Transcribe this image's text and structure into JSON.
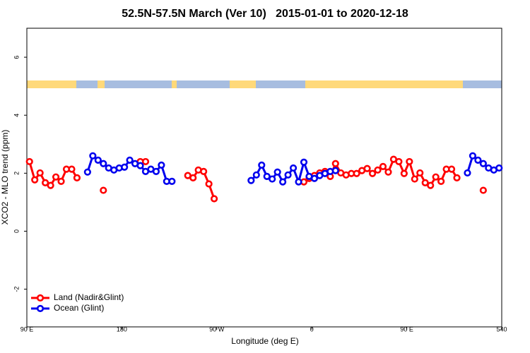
{
  "chart_data": {
    "type": "line",
    "title": "52.5N-57.5N March (Ver 10)   2015-01-01 to 2020-12-18",
    "xlabel": "Longitude (deg E)",
    "ylabel": "XCO2 - MLO trend (ppm)",
    "x": [
      92.5,
      97.5,
      102.5,
      107.5,
      112.5,
      117.5,
      122.5,
      127.5,
      132.5,
      137.5,
      142.5,
      147.5,
      152.5,
      157.5,
      162.5,
      167.5,
      172.5,
      177.5,
      182.5,
      187.5,
      192.5,
      197.5,
      202.5,
      207.5,
      212.5,
      217.5,
      222.5,
      227.5,
      232.5,
      237.5,
      242.5,
      247.5,
      252.5,
      257.5,
      262.5,
      267.5,
      272.5,
      277.5,
      282.5,
      287.5,
      292.5,
      297.5,
      302.5,
      307.5,
      312.5,
      317.5,
      322.5,
      327.5,
      332.5,
      337.5,
      342.5,
      347.5,
      352.5,
      357.5,
      362.5,
      367.5,
      372.5,
      377.5,
      382.5,
      387.5,
      392.5,
      397.5,
      402.5,
      407.5,
      412.5,
      417.5,
      422.5,
      427.5,
      432.5,
      437.5,
      442.5,
      447.5,
      452.5,
      457.5,
      462.5,
      467.5,
      472.5,
      477.5,
      482.5,
      487.5,
      492.5,
      497.5,
      502.5,
      507.5,
      512.5,
      517.5,
      522.5,
      527.5,
      532.5,
      537.5
    ],
    "series": [
      {
        "name": "Land (Nadir&Glint)",
        "color": "#ff0000",
        "values": [
          2.4,
          1.77,
          2.01,
          1.67,
          1.58,
          1.87,
          1.72,
          2.14,
          2.14,
          1.84,
          null,
          null,
          null,
          null,
          1.41,
          null,
          null,
          null,
          null,
          null,
          null,
          2.4,
          2.4,
          null,
          null,
          null,
          null,
          null,
          null,
          null,
          1.92,
          1.84,
          2.11,
          2.06,
          1.63,
          1.12,
          null,
          null,
          null,
          null,
          null,
          null,
          null,
          null,
          null,
          null,
          null,
          null,
          null,
          null,
          null,
          null,
          1.7,
          1.82,
          1.92,
          2.01,
          2.06,
          1.89,
          2.33,
          2.01,
          1.94,
          1.99,
          1.99,
          2.09,
          2.16,
          1.99,
          2.11,
          2.23,
          2.04,
          2.48,
          2.4,
          1.99,
          2.4,
          1.8,
          2.01,
          1.67,
          1.58,
          1.87,
          1.72,
          2.14,
          2.14,
          1.84,
          null,
          null,
          null,
          null,
          1.41,
          null,
          null,
          null
        ]
      },
      {
        "name": "Ocean (Glint)",
        "color": "#0000ee",
        "values": [
          null,
          null,
          null,
          null,
          null,
          null,
          null,
          null,
          null,
          null,
          null,
          2.04,
          2.6,
          2.45,
          2.33,
          2.18,
          2.11,
          2.18,
          2.21,
          2.45,
          2.33,
          2.26,
          2.06,
          2.14,
          2.06,
          2.28,
          1.72,
          1.72,
          null,
          null,
          null,
          null,
          null,
          null,
          null,
          null,
          null,
          null,
          null,
          null,
          null,
          null,
          1.75,
          1.94,
          2.28,
          1.89,
          1.8,
          2.04,
          1.7,
          1.94,
          2.18,
          1.7,
          2.38,
          1.89,
          1.82,
          1.92,
          1.99,
          2.06,
          2.09,
          null,
          null,
          null,
          null,
          null,
          null,
          null,
          null,
          null,
          null,
          null,
          null,
          null,
          null,
          null,
          null,
          null,
          null,
          null,
          null,
          null,
          null,
          null,
          null,
          2.01,
          2.6,
          2.45,
          2.33,
          2.18,
          2.11,
          2.18
        ]
      }
    ],
    "xlim": [
      90,
      540
    ],
    "xticks": [
      {
        "value": 90,
        "label": "90 E"
      },
      180,
      {
        "value": 270,
        "label": "90 W"
      },
      {
        "value": 360,
        "label": "0"
      },
      {
        "value": 450,
        "label": "90 E"
      },
      540
    ],
    "ylim": [
      -3.3,
      7
    ],
    "yticks": [
      -2,
      0,
      2,
      4,
      6
    ],
    "legend": "bottomleft"
  }
}
